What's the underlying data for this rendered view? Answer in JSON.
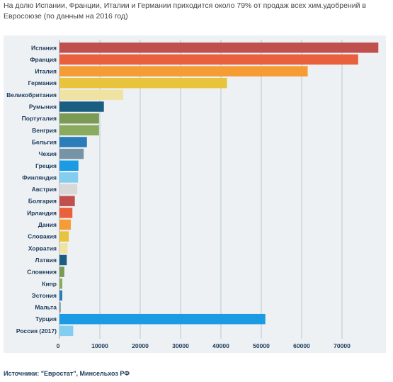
{
  "caption": "На долю Испании, Франции, Италии и Германии приходится около 79% от продаж всех хим.удобрений в Евросоюзе (по данным на 2016 год)",
  "source": "Источники: \"Евростат\", Минсельхоз РФ",
  "chart_data": {
    "type": "bar",
    "orientation": "horizontal",
    "title": "",
    "xlabel": "",
    "ylabel": "",
    "xlim": [
      0,
      80000
    ],
    "x_ticks": [
      0,
      10000,
      20000,
      30000,
      40000,
      50000,
      60000,
      70000
    ],
    "x_tick_labels": [
      "0",
      "10000",
      "20000",
      "30000",
      "40000",
      "50000",
      "60000",
      "70000"
    ],
    "grid": "vertical",
    "categories": [
      "Испания",
      "Франция",
      "Италия",
      "Германия",
      "Великобритания",
      "Румыния",
      "Португалия",
      "Венгрия",
      "Бельгия",
      "Чехия",
      "Греция",
      "Финляндия",
      "Австрия",
      "Болгария",
      "Ирландия",
      "Дания",
      "Словакия",
      "Хорватия",
      "Латвия",
      "Словения",
      "Кипр",
      "Эстония",
      "Мальта",
      "Турция",
      "Россия (2017)"
    ],
    "values": [
      79000,
      74000,
      61500,
      41500,
      15800,
      11000,
      9800,
      9800,
      6800,
      6000,
      4700,
      4600,
      4400,
      3800,
      3200,
      2800,
      2300,
      2000,
      1800,
      1200,
      700,
      700,
      300,
      51000,
      3400
    ],
    "colors": [
      "#c0504d",
      "#e8603c",
      "#f59c34",
      "#e8c33c",
      "#efe3a4",
      "#1c5d82",
      "#7a9a55",
      "#8aaa5e",
      "#2a7db8",
      "#7793a6",
      "#1b9be3",
      "#82cdf0",
      "#d8d8d8",
      "#c0504d",
      "#e8603c",
      "#f59c34",
      "#e8c33c",
      "#efe3a4",
      "#1c5d82",
      "#7a9a55",
      "#8aaa5e",
      "#2a7db8",
      "#7793a6",
      "#1b9be3",
      "#82cdf0"
    ]
  }
}
